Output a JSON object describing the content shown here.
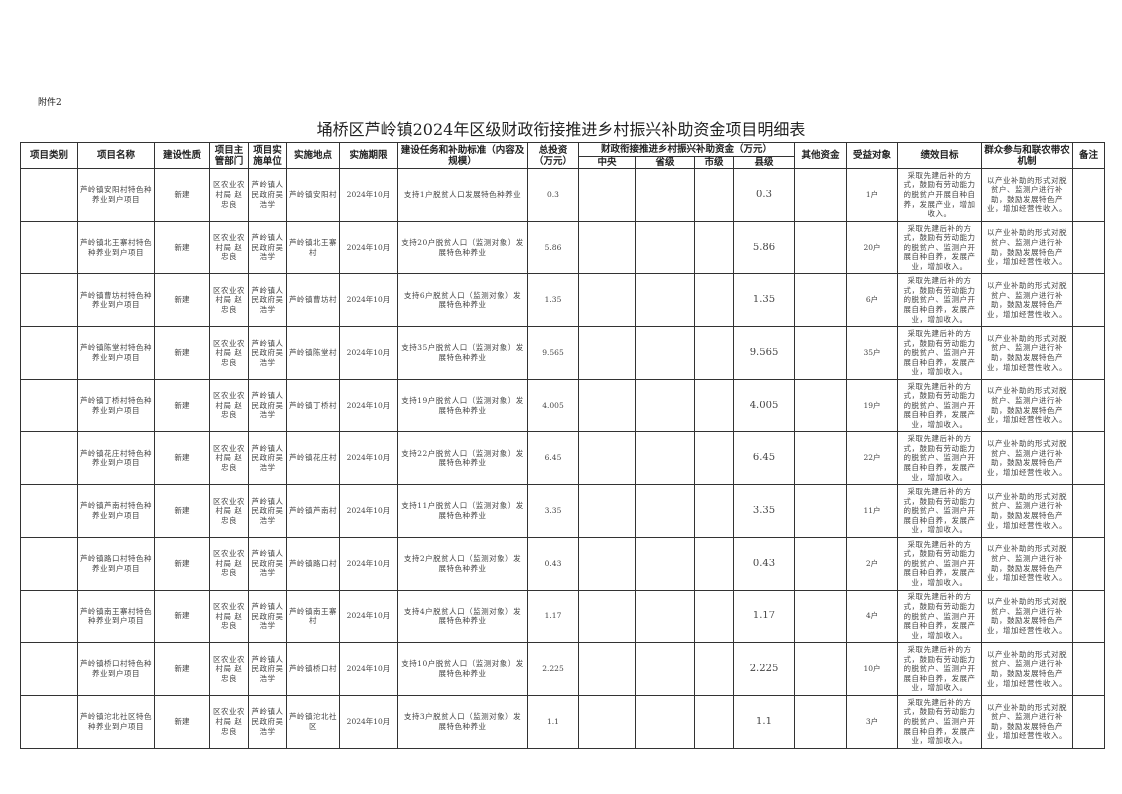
{
  "attachment": "附件2",
  "title": "埇桥区芦岭镇2024年区级财政衔接推进乡村振兴补助资金项目明细表",
  "headers": {
    "category": "项目类别",
    "name": "项目名称",
    "nature": "建设性质",
    "dept": "项目主管部门",
    "unit": "项目实施单位",
    "location": "实施地点",
    "period": "实施期限",
    "task": "建设任务和补助标准（内容及规模）",
    "total": "总投资（万元）",
    "fund_group": "财政衔接推进乡村振兴补助资金（万元）",
    "central": "中央",
    "province": "省级",
    "city": "市级",
    "county": "县级",
    "other": "其他资金",
    "beneficiary": "受益对象",
    "goal": "绩效目标",
    "mechanism": "群众参与和联农带农机制",
    "remark": "备注"
  },
  "rows": [
    {
      "category": "",
      "name": "芦岭镇安阳村特色种养业到户项目",
      "nature": "新建",
      "dept": "区农业农村局 赵忠良",
      "unit": "芦岭镇人民政府吴浩学",
      "location": "芦岭镇安阳村",
      "period": "2024年10月",
      "task": "支持1户脱贫人口发展特色种养业",
      "total": "0.3",
      "central": "",
      "province": "",
      "city": "",
      "county": "0.3",
      "other": "",
      "beneficiary": "1户",
      "goal": "采取先建后补的方式，鼓励有劳动能力的脱贫户开展自种自养，发展产业，增加收入。",
      "mechanism": "以产业补助的形式对脱贫户、监测户进行补助，鼓励发展特色产业，增加经营性收入。",
      "remark": ""
    },
    {
      "category": "",
      "name": "芦岭镇北王寨村特色种养业到户项目",
      "nature": "新建",
      "dept": "区农业农村局 赵忠良",
      "unit": "芦岭镇人民政府吴浩学",
      "location": "芦岭镇北王寨村",
      "period": "2024年10月",
      "task": "支持20户脱贫人口（监测对象）发展特色种养业",
      "total": "5.86",
      "central": "",
      "province": "",
      "city": "",
      "county": "5.86",
      "other": "",
      "beneficiary": "20户",
      "goal": "采取先建后补的方式，鼓励有劳动能力的脱贫户、监测户开展自种自养，发展产业，增加收入。",
      "mechanism": "以产业补助的形式对脱贫户、监测户进行补助，鼓励发展特色产业，增加经营性收入。",
      "remark": ""
    },
    {
      "category": "",
      "name": "芦岭镇曹坊村特色种养业到户项目",
      "nature": "新建",
      "dept": "区农业农村局 赵忠良",
      "unit": "芦岭镇人民政府吴浩学",
      "location": "芦岭镇曹坊村",
      "period": "2024年10月",
      "task": "支持6户脱贫人口（监测对象）发展特色种养业",
      "total": "1.35",
      "central": "",
      "province": "",
      "city": "",
      "county": "1.35",
      "other": "",
      "beneficiary": "6户",
      "goal": "采取先建后补的方式，鼓励有劳动能力的脱贫户、监测户开展自种自养，发展产业，增加收入。",
      "mechanism": "以产业补助的形式对脱贫户、监测户进行补助，鼓励发展特色产业，增加经营性收入。",
      "remark": ""
    },
    {
      "category": "",
      "name": "芦岭镇陈堂村特色种养业到户项目",
      "nature": "新建",
      "dept": "区农业农村局 赵忠良",
      "unit": "芦岭镇人民政府吴浩学",
      "location": "芦岭镇陈堂村",
      "period": "2024年10月",
      "task": "支持35户脱贫人口（监测对象）发展特色种养业",
      "total": "9.565",
      "central": "",
      "province": "",
      "city": "",
      "county": "9.565",
      "other": "",
      "beneficiary": "35户",
      "goal": "采取先建后补的方式，鼓励有劳动能力的脱贫户、监测户开展自种自养，发展产业，增加收入。",
      "mechanism": "以产业补助的形式对脱贫户、监测户进行补助，鼓励发展特色产业，增加经营性收入。",
      "remark": ""
    },
    {
      "category": "",
      "name": "芦岭镇丁桥村特色种养业到户项目",
      "nature": "新建",
      "dept": "区农业农村局 赵忠良",
      "unit": "芦岭镇人民政府吴浩学",
      "location": "芦岭镇丁桥村",
      "period": "2024年10月",
      "task": "支持19户脱贫人口（监测对象）发展特色种养业",
      "total": "4.005",
      "central": "",
      "province": "",
      "city": "",
      "county": "4.005",
      "other": "",
      "beneficiary": "19户",
      "goal": "采取先建后补的方式，鼓励有劳动能力的脱贫户、监测户开展自种自养，发展产业，增加收入。",
      "mechanism": "以产业补助的形式对脱贫户、监测户进行补助，鼓励发展特色产业，增加经营性收入。",
      "remark": ""
    },
    {
      "category": "",
      "name": "芦岭镇花庄村特色种养业到户项目",
      "nature": "新建",
      "dept": "区农业农村局 赵忠良",
      "unit": "芦岭镇人民政府吴浩学",
      "location": "芦岭镇花庄村",
      "period": "2024年10月",
      "task": "支持22户脱贫人口（监测对象）发展特色种养业",
      "total": "6.45",
      "central": "",
      "province": "",
      "city": "",
      "county": "6.45",
      "other": "",
      "beneficiary": "22户",
      "goal": "采取先建后补的方式，鼓励有劳动能力的脱贫户、监测户开展自种自养，发展产业，增加收入。",
      "mechanism": "以产业补助的形式对脱贫户、监测户进行补助，鼓励发展特色产业，增加经营性收入。",
      "remark": ""
    },
    {
      "category": "",
      "name": "芦岭镇芦南村特色种养业到户项目",
      "nature": "新建",
      "dept": "区农业农村局 赵忠良",
      "unit": "芦岭镇人民政府吴浩学",
      "location": "芦岭镇芦南村",
      "period": "2024年10月",
      "task": "支持11户脱贫人口（监测对象）发展特色种养业",
      "total": "3.35",
      "central": "",
      "province": "",
      "city": "",
      "county": "3.35",
      "other": "",
      "beneficiary": "11户",
      "goal": "采取先建后补的方式，鼓励有劳动能力的脱贫户、监测户开展自种自养，发展产业，增加收入。",
      "mechanism": "以产业补助的形式对脱贫户、监测户进行补助，鼓励发展特色产业，增加经营性收入。",
      "remark": ""
    },
    {
      "category": "",
      "name": "芦岭镇路口村特色种养业到户项目",
      "nature": "新建",
      "dept": "区农业农村局 赵忠良",
      "unit": "芦岭镇人民政府吴浩学",
      "location": "芦岭镇路口村",
      "period": "2024年10月",
      "task": "支持2户脱贫人口（监测对象）发展特色种养业",
      "total": "0.43",
      "central": "",
      "province": "",
      "city": "",
      "county": "0.43",
      "other": "",
      "beneficiary": "2户",
      "goal": "采取先建后补的方式，鼓励有劳动能力的脱贫户、监测户开展自种自养，发展产业，增加收入。",
      "mechanism": "以产业补助的形式对脱贫户、监测户进行补助，鼓励发展特色产业，增加经营性收入。",
      "remark": ""
    },
    {
      "category": "",
      "name": "芦岭镇南王寨村特色种养业到户项目",
      "nature": "新建",
      "dept": "区农业农村局 赵忠良",
      "unit": "芦岭镇人民政府吴浩学",
      "location": "芦岭镇南王寨村",
      "period": "2024年10月",
      "task": "支持4户脱贫人口（监测对象）发展特色种养业",
      "total": "1.17",
      "central": "",
      "province": "",
      "city": "",
      "county": "1.17",
      "other": "",
      "beneficiary": "4户",
      "goal": "采取先建后补的方式，鼓励有劳动能力的脱贫户、监测户开展自种自养，发展产业，增加收入。",
      "mechanism": "以产业补助的形式对脱贫户、监测户进行补助，鼓励发展特色产业，增加经营性收入。",
      "remark": ""
    },
    {
      "category": "",
      "name": "芦岭镇桥口村特色种养业到户项目",
      "nature": "新建",
      "dept": "区农业农村局 赵忠良",
      "unit": "芦岭镇人民政府吴浩学",
      "location": "芦岭镇桥口村",
      "period": "2024年10月",
      "task": "支持10户脱贫人口（监测对象）发展特色种养业",
      "total": "2.225",
      "central": "",
      "province": "",
      "city": "",
      "county": "2.225",
      "other": "",
      "beneficiary": "10户",
      "goal": "采取先建后补的方式，鼓励有劳动能力的脱贫户、监测户开展自种自养，发展产业，增加收入。",
      "mechanism": "以产业补助的形式对脱贫户、监测户进行补助，鼓励发展特色产业，增加经营性收入。",
      "remark": ""
    },
    {
      "category": "",
      "name": "芦岭镇沱北社区特色种养业到户项目",
      "nature": "新建",
      "dept": "区农业农村局 赵忠良",
      "unit": "芦岭镇人民政府吴浩学",
      "location": "芦岭镇沱北社区",
      "period": "2024年10月",
      "task": "支持3户脱贫人口（监测对象）发展特色种养业",
      "total": "1.1",
      "central": "",
      "province": "",
      "city": "",
      "county": "1.1",
      "other": "",
      "beneficiary": "3户",
      "goal": "采取先建后补的方式，鼓励有劳动能力的脱贫户、监测户开展自种自养，发展产业，增加收入。",
      "mechanism": "以产业补助的形式对脱贫户、监测户进行补助，鼓励发展特色产业，增加经营性收入。",
      "remark": ""
    }
  ]
}
